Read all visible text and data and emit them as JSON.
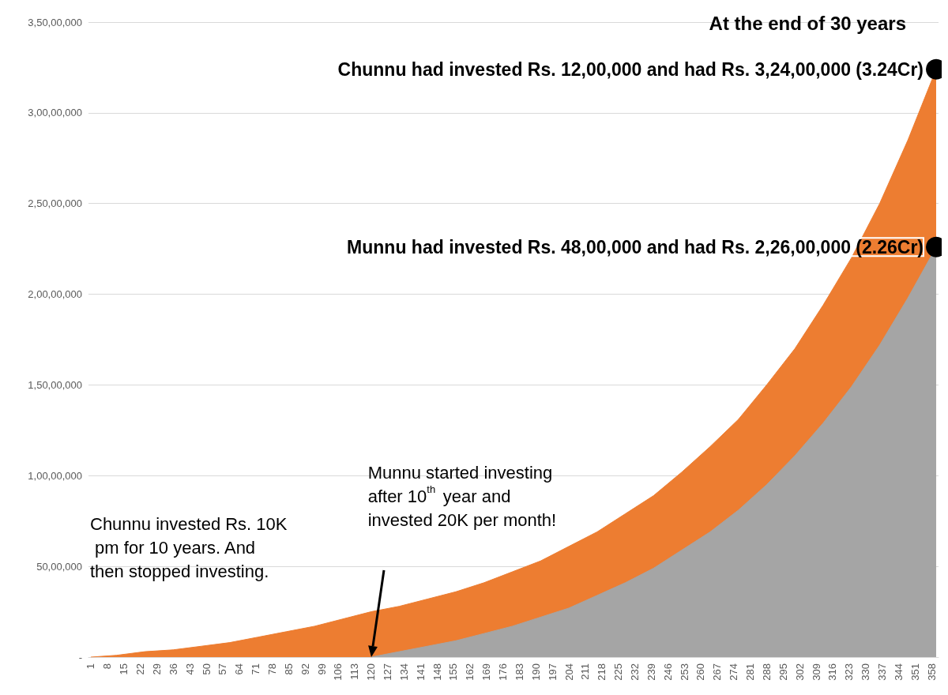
{
  "chart_data": {
    "type": "area",
    "title": "At the end of 30 years",
    "xlim": [
      0,
      361
    ],
    "xticks": [
      1,
      8,
      15,
      22,
      29,
      36,
      43,
      50,
      57,
      64,
      71,
      78,
      85,
      92,
      99,
      106,
      113,
      120,
      127,
      134,
      141,
      148,
      155,
      162,
      169,
      176,
      183,
      190,
      197,
      204,
      211,
      218,
      225,
      232,
      239,
      246,
      253,
      260,
      267,
      274,
      281,
      288,
      295,
      302,
      309,
      316,
      323,
      330,
      337,
      344,
      351,
      358
    ],
    "ylim": [
      0,
      35000000
    ],
    "yticks": [
      {
        "value": 0,
        "label": "-"
      },
      {
        "value": 5000000,
        "label": "50,00,000"
      },
      {
        "value": 10000000,
        "label": "1,00,00,000"
      },
      {
        "value": 15000000,
        "label": "1,50,00,000"
      },
      {
        "value": 20000000,
        "label": "2,00,00,000"
      },
      {
        "value": 25000000,
        "label": "2,50,00,000"
      },
      {
        "value": 30000000,
        "label": "3,00,00,000"
      },
      {
        "value": 35000000,
        "label": "3,50,00,000"
      }
    ],
    "grid": "y",
    "marker": "none",
    "series": [
      {
        "color": "#ed7d31",
        "x": [
          1,
          12,
          24,
          36,
          48,
          60,
          72,
          84,
          96,
          108,
          120,
          132,
          144,
          156,
          168,
          180,
          192,
          204,
          216,
          228,
          240,
          252,
          264,
          276,
          288,
          300,
          312,
          324,
          336,
          348,
          360
        ],
        "values": [
          0,
          100000,
          300000,
          400000,
          600000,
          800000,
          1100000,
          1400000,
          1700000,
          2100000,
          2500000,
          2800000,
          3200000,
          3600000,
          4100000,
          4700000,
          5300000,
          6100000,
          6900000,
          7900000,
          8900000,
          10200000,
          11600000,
          13100000,
          15000000,
          17000000,
          19400000,
          22000000,
          25000000,
          28500000,
          32400000
        ]
      },
      {
        "color": "#a5a5a5",
        "x": [
          120,
          132,
          144,
          156,
          168,
          180,
          192,
          204,
          216,
          228,
          240,
          252,
          264,
          276,
          288,
          300,
          312,
          324,
          336,
          348,
          360
        ],
        "values": [
          0,
          300000,
          600000,
          900000,
          1300000,
          1700000,
          2200000,
          2700000,
          3400000,
          4100000,
          4900000,
          5900000,
          6900000,
          8100000,
          9500000,
          11100000,
          12900000,
          14900000,
          17200000,
          19800000,
          22600000
        ]
      }
    ],
    "annotations": [
      {
        "text": "Chunnu had invested Rs. 12,00,000 and had Rs. 3,24,00,000 (3.24Cr)",
        "x": 360,
        "y": 32400000
      },
      {
        "text": "Munnu had invested Rs. 48,00,000 and had Rs. 2,26,00,000 (2.26Cr)",
        "x": 360,
        "y": 22600000
      },
      "Chunnu invested Rs. 10K pm for 10 years. And then stopped investing.",
      "Munnu started investing after 10$^{th}$ year and invested 20K per month!"
    ]
  }
}
